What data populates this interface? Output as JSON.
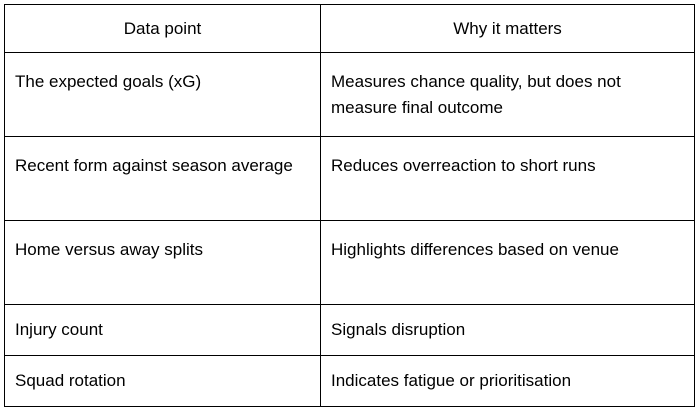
{
  "table": {
    "header": [
      "Data point",
      "Why it matters"
    ],
    "rows": [
      [
        "The expected goals (xG)",
        "Measures chance quality, but does not measure final outcome"
      ],
      [
        "Recent form against season average",
        "Reduces overreaction to short runs"
      ],
      [
        "Home versus away splits",
        "Highlights differences based on venue"
      ],
      [
        "Injury count",
        "Signals disruption"
      ],
      [
        "Squad rotation",
        "Indicates fatigue or prioritisation"
      ]
    ]
  }
}
